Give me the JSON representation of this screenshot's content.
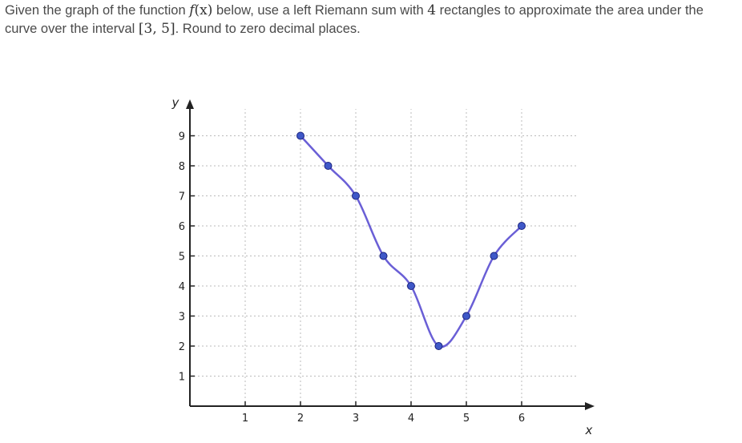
{
  "question": {
    "part1": "Given the graph of the function ",
    "func_name": "f",
    "func_arg": "(x)",
    "part2": " below, use a left Riemann sum with ",
    "n_rects": "4",
    "part3": " rectangles to approximate the area under the curve over the interval ",
    "interval": "[3, 5]",
    "part4": ". Round to zero decimal places."
  },
  "chart_data": {
    "type": "line",
    "xlabel": "x",
    "ylabel": "y",
    "xlim": [
      0,
      6.9
    ],
    "ylim": [
      0,
      9.6
    ],
    "x_ticks": [
      1,
      2,
      3,
      4,
      5,
      6
    ],
    "y_ticks": [
      1,
      2,
      3,
      4,
      5,
      6,
      7,
      8,
      9
    ],
    "grid": true,
    "series": [
      {
        "x": [
          2,
          2.5,
          3,
          3.5,
          4,
          4.5,
          5,
          5.5,
          6
        ],
        "y": [
          9,
          8,
          7,
          5,
          4,
          2,
          3,
          5,
          6
        ]
      }
    ],
    "colors": {
      "curve": "#6a5fd6",
      "point_fill": "#3f58c8",
      "point_stroke": "#1a237e",
      "grid": "#bbbbbb",
      "axis": "#222222"
    }
  }
}
